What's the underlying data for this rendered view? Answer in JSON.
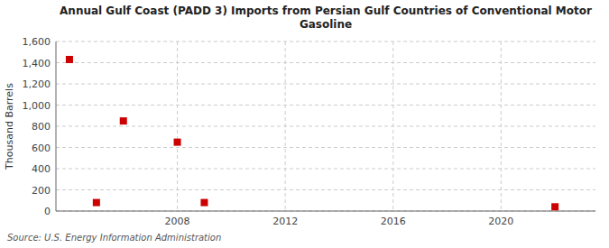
{
  "chart_data": {
    "type": "scatter",
    "title": "Annual Gulf Coast (PADD 3) Imports from Persian Gulf Countries of Conventional Motor\nGasoline",
    "y_label": "Thousand Barrels",
    "annotations": [
      "Source: U.S. Energy Information Administration"
    ],
    "x": [
      2004,
      2005,
      2006,
      2008,
      2009,
      2022
    ],
    "values": [
      1430,
      80,
      850,
      650,
      80,
      40
    ],
    "color": "#cc0000",
    "marker": "square",
    "xlim": [
      2003.5,
      2023.5
    ],
    "ylim": [
      0,
      1600
    ],
    "xticks": [
      2008,
      2012,
      2016,
      2020
    ],
    "yticks": [
      0,
      200,
      400,
      600,
      800,
      {
        "value": 1000,
        "label": "1,000"
      },
      {
        "value": 1200,
        "label": "1,200"
      },
      {
        "value": 1400,
        "label": "1,400"
      },
      {
        "value": 1600,
        "label": "1,600"
      }
    ],
    "grid": true
  }
}
